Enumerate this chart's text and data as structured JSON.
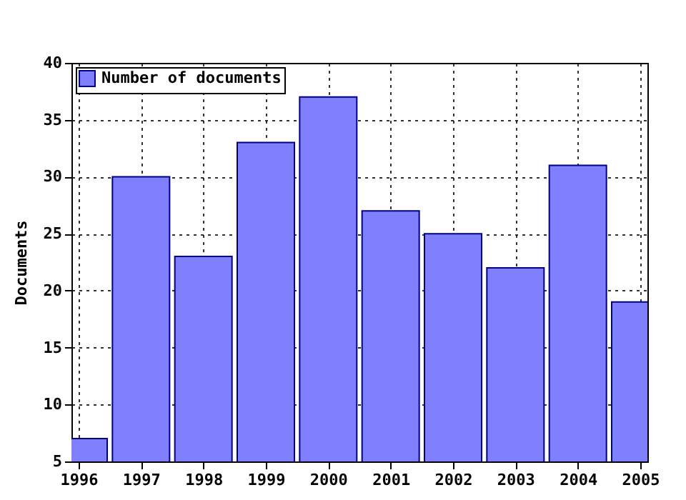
{
  "chart_data": {
    "type": "bar",
    "ylabel": "Documents",
    "x": [
      1996,
      1997,
      1998,
      1999,
      2000,
      2001,
      2002,
      2003,
      2004,
      2005
    ],
    "series": [
      {
        "name": "Number of documents",
        "color": "#8080ff",
        "values": [
          7,
          30,
          23,
          33,
          37,
          27,
          25,
          22,
          31,
          19
        ]
      }
    ],
    "xlim": [
      1996,
      2005
    ],
    "xticks": [
      1996,
      1997,
      1998,
      1999,
      2000,
      2001,
      2002,
      2003,
      2004,
      2005
    ],
    "ylim": [
      5,
      40
    ],
    "yticks": [
      5,
      10,
      15,
      20,
      25,
      30,
      35,
      40
    ],
    "grid": true,
    "legend": "top left"
  }
}
